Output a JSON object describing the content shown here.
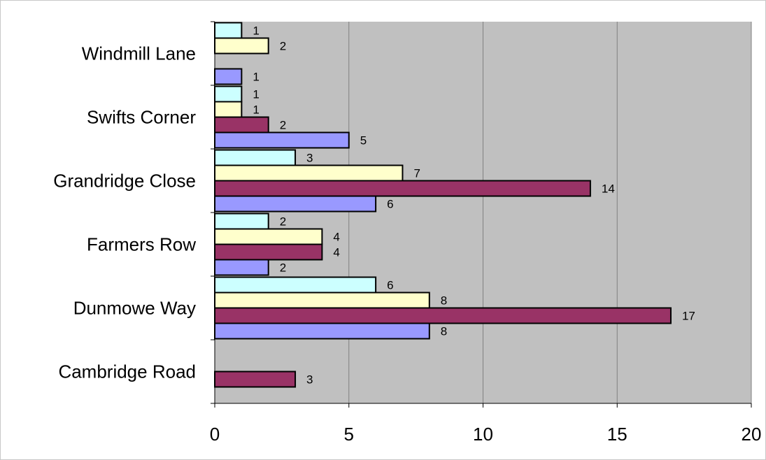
{
  "chart_data": {
    "type": "bar",
    "orientation": "horizontal",
    "categories": [
      "Cambridge Road",
      "Dunmowe Way",
      "Farmers Row",
      "Grandridge Close",
      "Swifts Corner",
      "Windmill Lane"
    ],
    "series": [
      {
        "color": "#9999ff",
        "values": [
          null,
          8,
          2,
          6,
          5,
          1
        ]
      },
      {
        "color": "#993366",
        "values": [
          3,
          17,
          4,
          14,
          2,
          null
        ]
      },
      {
        "color": "#ffffcc",
        "values": [
          null,
          8,
          4,
          7,
          1,
          2
        ]
      },
      {
        "color": "#ccffff",
        "values": [
          null,
          6,
          2,
          3,
          1,
          1
        ]
      }
    ],
    "xlim": [
      0,
      20
    ],
    "xticks": [
      "0",
      "5",
      "10",
      "15",
      "20"
    ],
    "plot_background": "#c0c0c0",
    "grid": true,
    "legend": false,
    "data_labels": true
  }
}
